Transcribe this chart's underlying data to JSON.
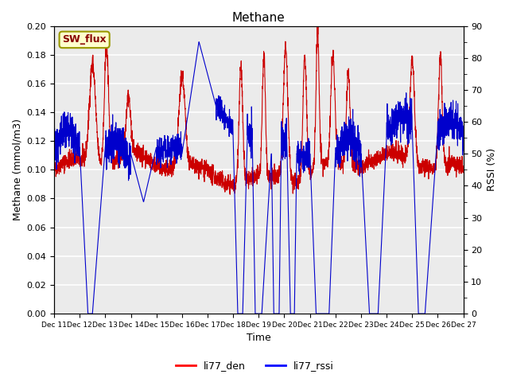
{
  "title": "Methane",
  "ylabel_left": "Methane (mmol/m3)",
  "ylabel_right": "RSSI (%)",
  "xlabel": "Time",
  "ylim_left": [
    0.0,
    0.2
  ],
  "ylim_right": [
    0,
    90
  ],
  "yticks_left": [
    0.0,
    0.02,
    0.04,
    0.06,
    0.08,
    0.1,
    0.12,
    0.14,
    0.16,
    0.18,
    0.2
  ],
  "yticks_right": [
    0,
    10,
    20,
    30,
    40,
    50,
    60,
    70,
    80,
    90
  ],
  "xtick_labels": [
    "Dec 11",
    "Dec 12",
    "Dec 13",
    "Dec 14",
    "Dec 15",
    "Dec 16",
    "Dec 17",
    "Dec 18",
    "Dec 19",
    "Dec 20",
    "Dec 21",
    "Dec 22",
    "Dec 23",
    "Dec 24",
    "Dec 25",
    "Dec 26",
    "Dec 27"
  ],
  "legend_labels": [
    "li77_den",
    "li77_rssi"
  ],
  "legend_colors": [
    "red",
    "blue"
  ],
  "box_label": "SW_flux",
  "box_facecolor": "#ffffcc",
  "box_edgecolor": "#999900",
  "line_color_den": "#cc0000",
  "line_color_rssi": "#0000cc",
  "plot_bg_color": "#ebebeb",
  "grid_color": "white",
  "n_points": 3000
}
